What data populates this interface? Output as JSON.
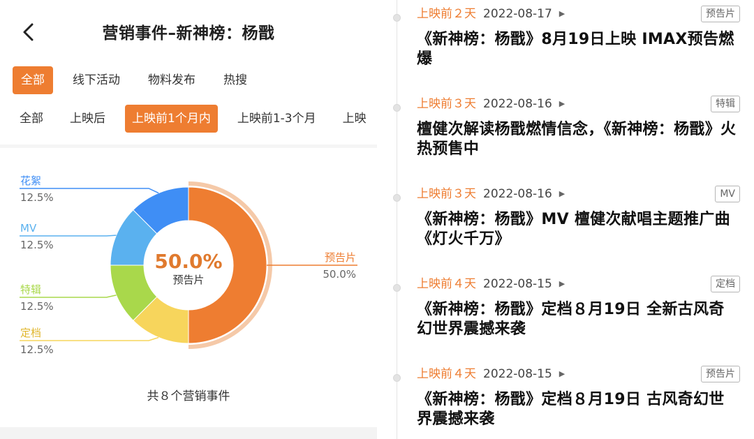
{
  "header": {
    "title": "营销事件–新神榜：杨戬"
  },
  "tabs_primary": [
    "全部",
    "线下活动",
    "物料发布",
    "热搜"
  ],
  "tabs_primary_active": 0,
  "tabs_secondary": [
    "全部",
    "上映后",
    "上映前1个月内",
    "上映前1-3个月",
    "上映"
  ],
  "tabs_secondary_active": 2,
  "chart_data": {
    "type": "pie",
    "donut": true,
    "center_value": "50.0%",
    "center_label": "预告片",
    "slices": [
      {
        "name": "预告片",
        "value": 50.0,
        "pct_label": "50.0%",
        "color": "#ee7d31"
      },
      {
        "name": "定档",
        "value": 12.5,
        "pct_label": "12.5%",
        "color": "#f7d55c"
      },
      {
        "name": "特辑",
        "value": 12.5,
        "pct_label": "12.5%",
        "color": "#a9d84b"
      },
      {
        "name": "MV",
        "value": 12.5,
        "pct_label": "12.5%",
        "color": "#5ab1ef"
      },
      {
        "name": "花絮",
        "value": 12.5,
        "pct_label": "12.5%",
        "color": "#3f8ef5"
      }
    ]
  },
  "summary": "共８个营销事件",
  "events": [
    {
      "days": "上映前２天",
      "date": "2022-08-17",
      "badge": "预告片",
      "title": "《新神榜：杨戬》8月19日上映 IMAX预告燃爆"
    },
    {
      "days": "上映前３天",
      "date": "2022-08-16",
      "badge": "特辑",
      "title": "檀健次解读杨戬燃情信念，《新神榜：杨戬》火热预售中"
    },
    {
      "days": "上映前３天",
      "date": "2022-08-16",
      "badge": "MV",
      "title": "《新神榜：杨戬》MV 檀健次献唱主题推广曲《灯火千万》"
    },
    {
      "days": "上映前４天",
      "date": "2022-08-15",
      "badge": "定档",
      "title": "《新神榜：杨戬》定档８月19日 全新古风奇幻世界震撼来袭"
    },
    {
      "days": "上映前４天",
      "date": "2022-08-15",
      "badge": "预告片",
      "title": "《新神榜：杨戬》定档８月19日 古风奇幻世界震撼来袭"
    }
  ]
}
